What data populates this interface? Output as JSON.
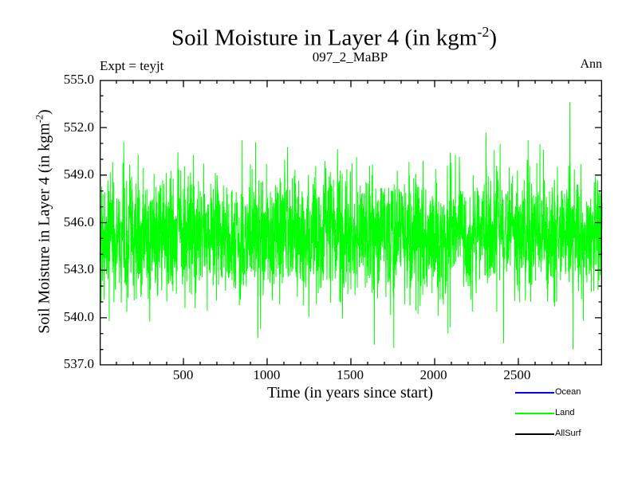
{
  "header": {
    "title": {
      "pre": "Soil Moisture in Layer 4 (in kgm",
      "sup": "-2",
      "post": ")"
    },
    "subtitle": "097_2_MaBP",
    "left_annotation": "Expt = teyjt",
    "right_annotation": "Ann"
  },
  "chart_data": {
    "type": "line",
    "title": "Soil Moisture in Layer 4 (in kgm^-2)",
    "subtitle": "097_2_MaBP",
    "xlabel": "Time (in years since start)",
    "ylabel_parts": {
      "pre": "Soil Moisture in Layer 4 (in kgm",
      "sup": "-2",
      "post": ")"
    },
    "xlim": [
      0,
      3000
    ],
    "ylim": [
      537.0,
      555.0
    ],
    "x_major_ticks": [
      500,
      1000,
      1500,
      2000,
      2500
    ],
    "x_minor_step": 100,
    "y_major_ticks": [
      537.0,
      540.0,
      543.0,
      546.0,
      549.0,
      552.0,
      555.0
    ],
    "y_minor_step": 1.0,
    "y_tick_decimals": 1,
    "grid": false,
    "frame_color": "#000000",
    "legend": {
      "position": "below-right",
      "entries": [
        {
          "label": "Ocean",
          "color": "#0000ff"
        },
        {
          "label": "Land",
          "color": "#00ff00"
        },
        {
          "label": "AllSurf",
          "color": "#000000"
        }
      ]
    },
    "series": [
      {
        "name": "Land",
        "color": "#00ff00",
        "visible": true,
        "line_width": 1,
        "n_points": 3000,
        "x_start": 1,
        "x_step": 1,
        "mean": 545.2,
        "sd": 1.85,
        "ar1": 0.15,
        "seed": 970202,
        "clamp": [
          538.0,
          552.0
        ],
        "notable_points": [
          {
            "x": 144,
            "y": 551.1
          },
          {
            "x": 230,
            "y": 550.3
          },
          {
            "x": 851,
            "y": 551.2
          },
          {
            "x": 1345,
            "y": 549.9
          },
          {
            "x": 2650,
            "y": 550.6
          },
          {
            "x": 2807,
            "y": 553.6
          },
          {
            "x": 57,
            "y": 539.8
          },
          {
            "x": 960,
            "y": 539.3
          },
          {
            "x": 1640,
            "y": 538.3
          },
          {
            "x": 1756,
            "y": 538.1
          },
          {
            "x": 2080,
            "y": 539.0
          },
          {
            "x": 2412,
            "y": 538.4
          }
        ]
      }
    ]
  }
}
